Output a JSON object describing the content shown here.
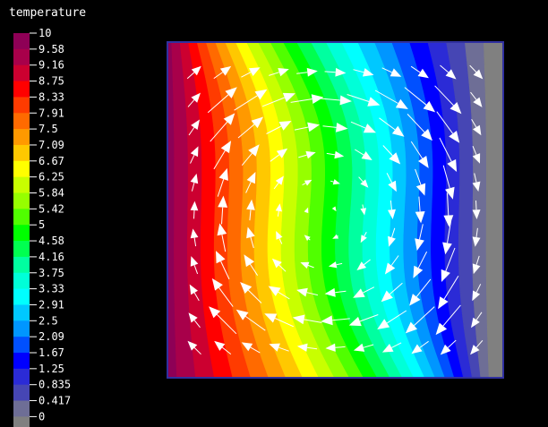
{
  "chart_data": {
    "type": "heatmap",
    "title": "temperature",
    "variable": "temperature",
    "colorbar": {
      "levels": [
        "10",
        "9.58",
        "9.16",
        "8.75",
        "8.33",
        "7.91",
        "7.5",
        "7.09",
        "6.67",
        "6.25",
        "5.84",
        "5.42",
        "5",
        "4.58",
        "4.16",
        "3.75",
        "3.33",
        "2.91",
        "2.5",
        "2.09",
        "1.67",
        "1.25",
        "0.835",
        "0.417",
        "0"
      ],
      "colors": [
        "#8e0056",
        "#a8004a",
        "#cc0030",
        "#ff0000",
        "#ff3b00",
        "#ff6a00",
        "#ff9900",
        "#ffc800",
        "#ffff00",
        "#c8ff00",
        "#96ff00",
        "#50ff00",
        "#00ff00",
        "#00ff50",
        "#00ffa0",
        "#00ffd8",
        "#00ffff",
        "#00c8ff",
        "#0096ff",
        "#0050ff",
        "#0000ff",
        "#2b2bd6",
        "#4646b4",
        "#6e6e96",
        "#808080"
      ]
    },
    "contour_field": {
      "x_range": [
        0,
        1
      ],
      "y_range": [
        0,
        1
      ],
      "value_range": [
        0,
        10
      ],
      "description_of_field": "hot (10) at left wall, cold (0) at right wall, isotherms tilted by a clockwise convection cell"
    },
    "vector_field": {
      "type": "clockwise convection cell",
      "arrow_color": "#ffffff"
    },
    "frame_color": "#3030a0",
    "grid": false
  }
}
